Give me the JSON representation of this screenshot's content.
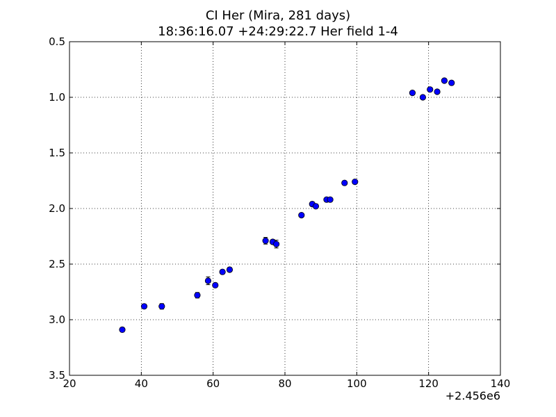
{
  "chart_data": {
    "type": "scatter",
    "title": "CI Her (Mira, 281 days)",
    "subtitle": "18:36:16.07 +24:29:22.7 Her field 1-4",
    "x_offset_label": "+2.456e6",
    "xlim": [
      20,
      140
    ],
    "ylim": [
      3.5,
      0.5
    ],
    "y_inverted": true,
    "grid": true,
    "xticks": [
      "20",
      "40",
      "60",
      "80",
      "100",
      "120",
      "140"
    ],
    "yticks": [
      "0.5",
      "1.0",
      "1.5",
      "2.0",
      "2.5",
      "3.0",
      "3.5"
    ],
    "marker_color": "#0000ff",
    "points": [
      {
        "x": 34.7,
        "y": 3.09,
        "err": 0.02
      },
      {
        "x": 40.8,
        "y": 2.88,
        "err": 0.02
      },
      {
        "x": 45.7,
        "y": 2.88,
        "err": 0.025
      },
      {
        "x": 55.6,
        "y": 2.78,
        "err": 0.025
      },
      {
        "x": 58.6,
        "y": 2.65,
        "err": 0.035
      },
      {
        "x": 60.6,
        "y": 2.69,
        "err": 0.02
      },
      {
        "x": 62.6,
        "y": 2.57,
        "err": 0.02
      },
      {
        "x": 64.6,
        "y": 2.55,
        "err": 0.02
      },
      {
        "x": 74.6,
        "y": 2.29,
        "err": 0.03
      },
      {
        "x": 76.6,
        "y": 2.3,
        "err": 0.02
      },
      {
        "x": 77.6,
        "y": 2.32,
        "err": 0.035
      },
      {
        "x": 84.6,
        "y": 2.06,
        "err": 0.015
      },
      {
        "x": 87.6,
        "y": 1.96,
        "err": 0.02
      },
      {
        "x": 88.6,
        "y": 1.98,
        "err": 0.02
      },
      {
        "x": 91.6,
        "y": 1.92,
        "err": 0.015
      },
      {
        "x": 92.6,
        "y": 1.92,
        "err": 0.015
      },
      {
        "x": 96.6,
        "y": 1.77,
        "err": 0.015
      },
      {
        "x": 99.5,
        "y": 1.76,
        "err": 0.015
      },
      {
        "x": 115.5,
        "y": 0.96,
        "err": 0.015
      },
      {
        "x": 118.4,
        "y": 1.0,
        "err": 0.015
      },
      {
        "x": 120.4,
        "y": 0.93,
        "err": 0.015
      },
      {
        "x": 122.4,
        "y": 0.95,
        "err": 0.015
      },
      {
        "x": 124.4,
        "y": 0.85,
        "err": 0.015
      },
      {
        "x": 126.4,
        "y": 0.87,
        "err": 0.015
      }
    ]
  }
}
